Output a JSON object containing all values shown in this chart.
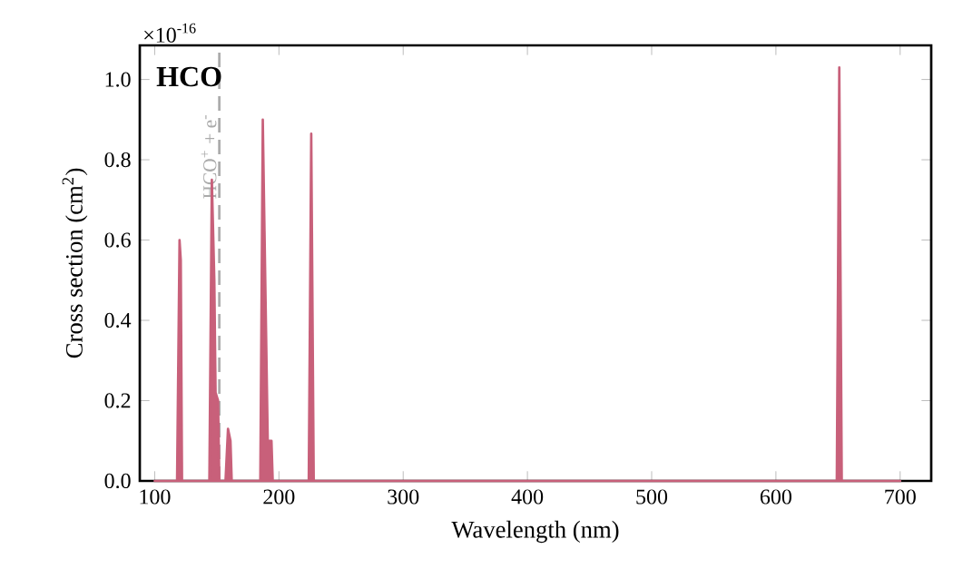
{
  "chart_data": {
    "type": "area",
    "title": "HCO",
    "xlabel": "Wavelength (nm)",
    "ylabel": "Cross section (cm$^{2}$)",
    "annotations": [
      "×10$^{-16}$"
    ],
    "x": [
      100,
      118,
      120,
      121,
      122,
      144,
      146,
      148,
      149,
      151,
      152,
      157,
      159,
      161,
      162,
      185,
      187,
      189,
      191,
      194,
      195,
      224,
      226,
      228,
      649,
      651,
      653,
      700
    ],
    "series": [
      {
        "color": "#c8607a",
        "values": [
          0,
          0,
          0.6,
          0.55,
          0,
          0,
          0.75,
          0.5,
          0.22,
          0.2,
          0,
          0,
          0.13,
          0.1,
          0,
          0,
          0.9,
          0.5,
          0.1,
          0.1,
          0,
          0,
          0.865,
          0,
          0,
          1.03,
          0,
          0
        ]
      }
    ],
    "xlim": [
      88,
      725
    ],
    "ylim": [
      0,
      1.085
    ],
    "xticks": [
      100,
      200,
      300,
      400,
      500,
      600,
      700
    ],
    "yticks": [
      {
        "value": 0,
        "label": "0.0"
      },
      {
        "value": 0.2,
        "label": "0.2"
      },
      {
        "value": 0.4,
        "label": "0.4"
      },
      {
        "value": 0.6,
        "label": "0.6"
      },
      {
        "value": 0.8,
        "label": "0.8"
      },
      {
        "value": 1.0,
        "label": "1.0"
      }
    ],
    "ref_lines": [
      {
        "axis": "x",
        "value": 152,
        "label": "HCO$^{+}$ + e$^{-}$",
        "color": "#aaaaaa",
        "line_style": "dashed"
      }
    ],
    "grid": false
  }
}
